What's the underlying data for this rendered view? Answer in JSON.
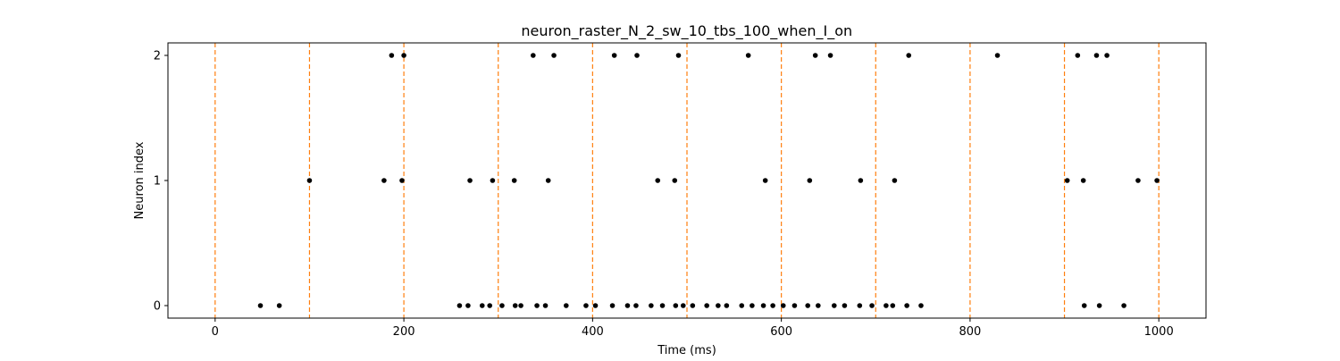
{
  "chart_data": {
    "type": "scatter",
    "title": "neuron_raster_N_2_sw_10_tbs_100_when_I_on",
    "xlabel": "Time (ms)",
    "ylabel": "Neuron index",
    "xlim": [
      -50,
      1050
    ],
    "ylim": [
      -0.1,
      2.1
    ],
    "x_ticks": [
      0,
      200,
      400,
      600,
      800,
      1000
    ],
    "y_ticks": [
      0,
      1,
      2
    ],
    "grid": false,
    "legend": "none",
    "marker_color": "#000000",
    "vline_color": "#ff7f0e",
    "vlines": [
      0,
      100,
      200,
      300,
      400,
      500,
      600,
      700,
      800,
      900,
      1000
    ],
    "series": [
      {
        "neuron": 0,
        "x": [
          48,
          68,
          259,
          268,
          283,
          291,
          304,
          318,
          324,
          341,
          350,
          372,
          393,
          403,
          421,
          437,
          446,
          462,
          474,
          488,
          496,
          506,
          521,
          533,
          542,
          558,
          569,
          581,
          591,
          602,
          614,
          628,
          639,
          656,
          667,
          683,
          696,
          711,
          718,
          733,
          748,
          921,
          937,
          963
        ]
      },
      {
        "neuron": 1,
        "x": [
          100,
          179,
          198,
          270,
          294,
          317,
          353,
          469,
          487,
          583,
          630,
          684,
          720,
          903,
          920,
          978,
          998
        ]
      },
      {
        "neuron": 2,
        "x": [
          187,
          200,
          337,
          359,
          423,
          447,
          491,
          565,
          636,
          652,
          735,
          829,
          914,
          934,
          945
        ]
      }
    ]
  }
}
